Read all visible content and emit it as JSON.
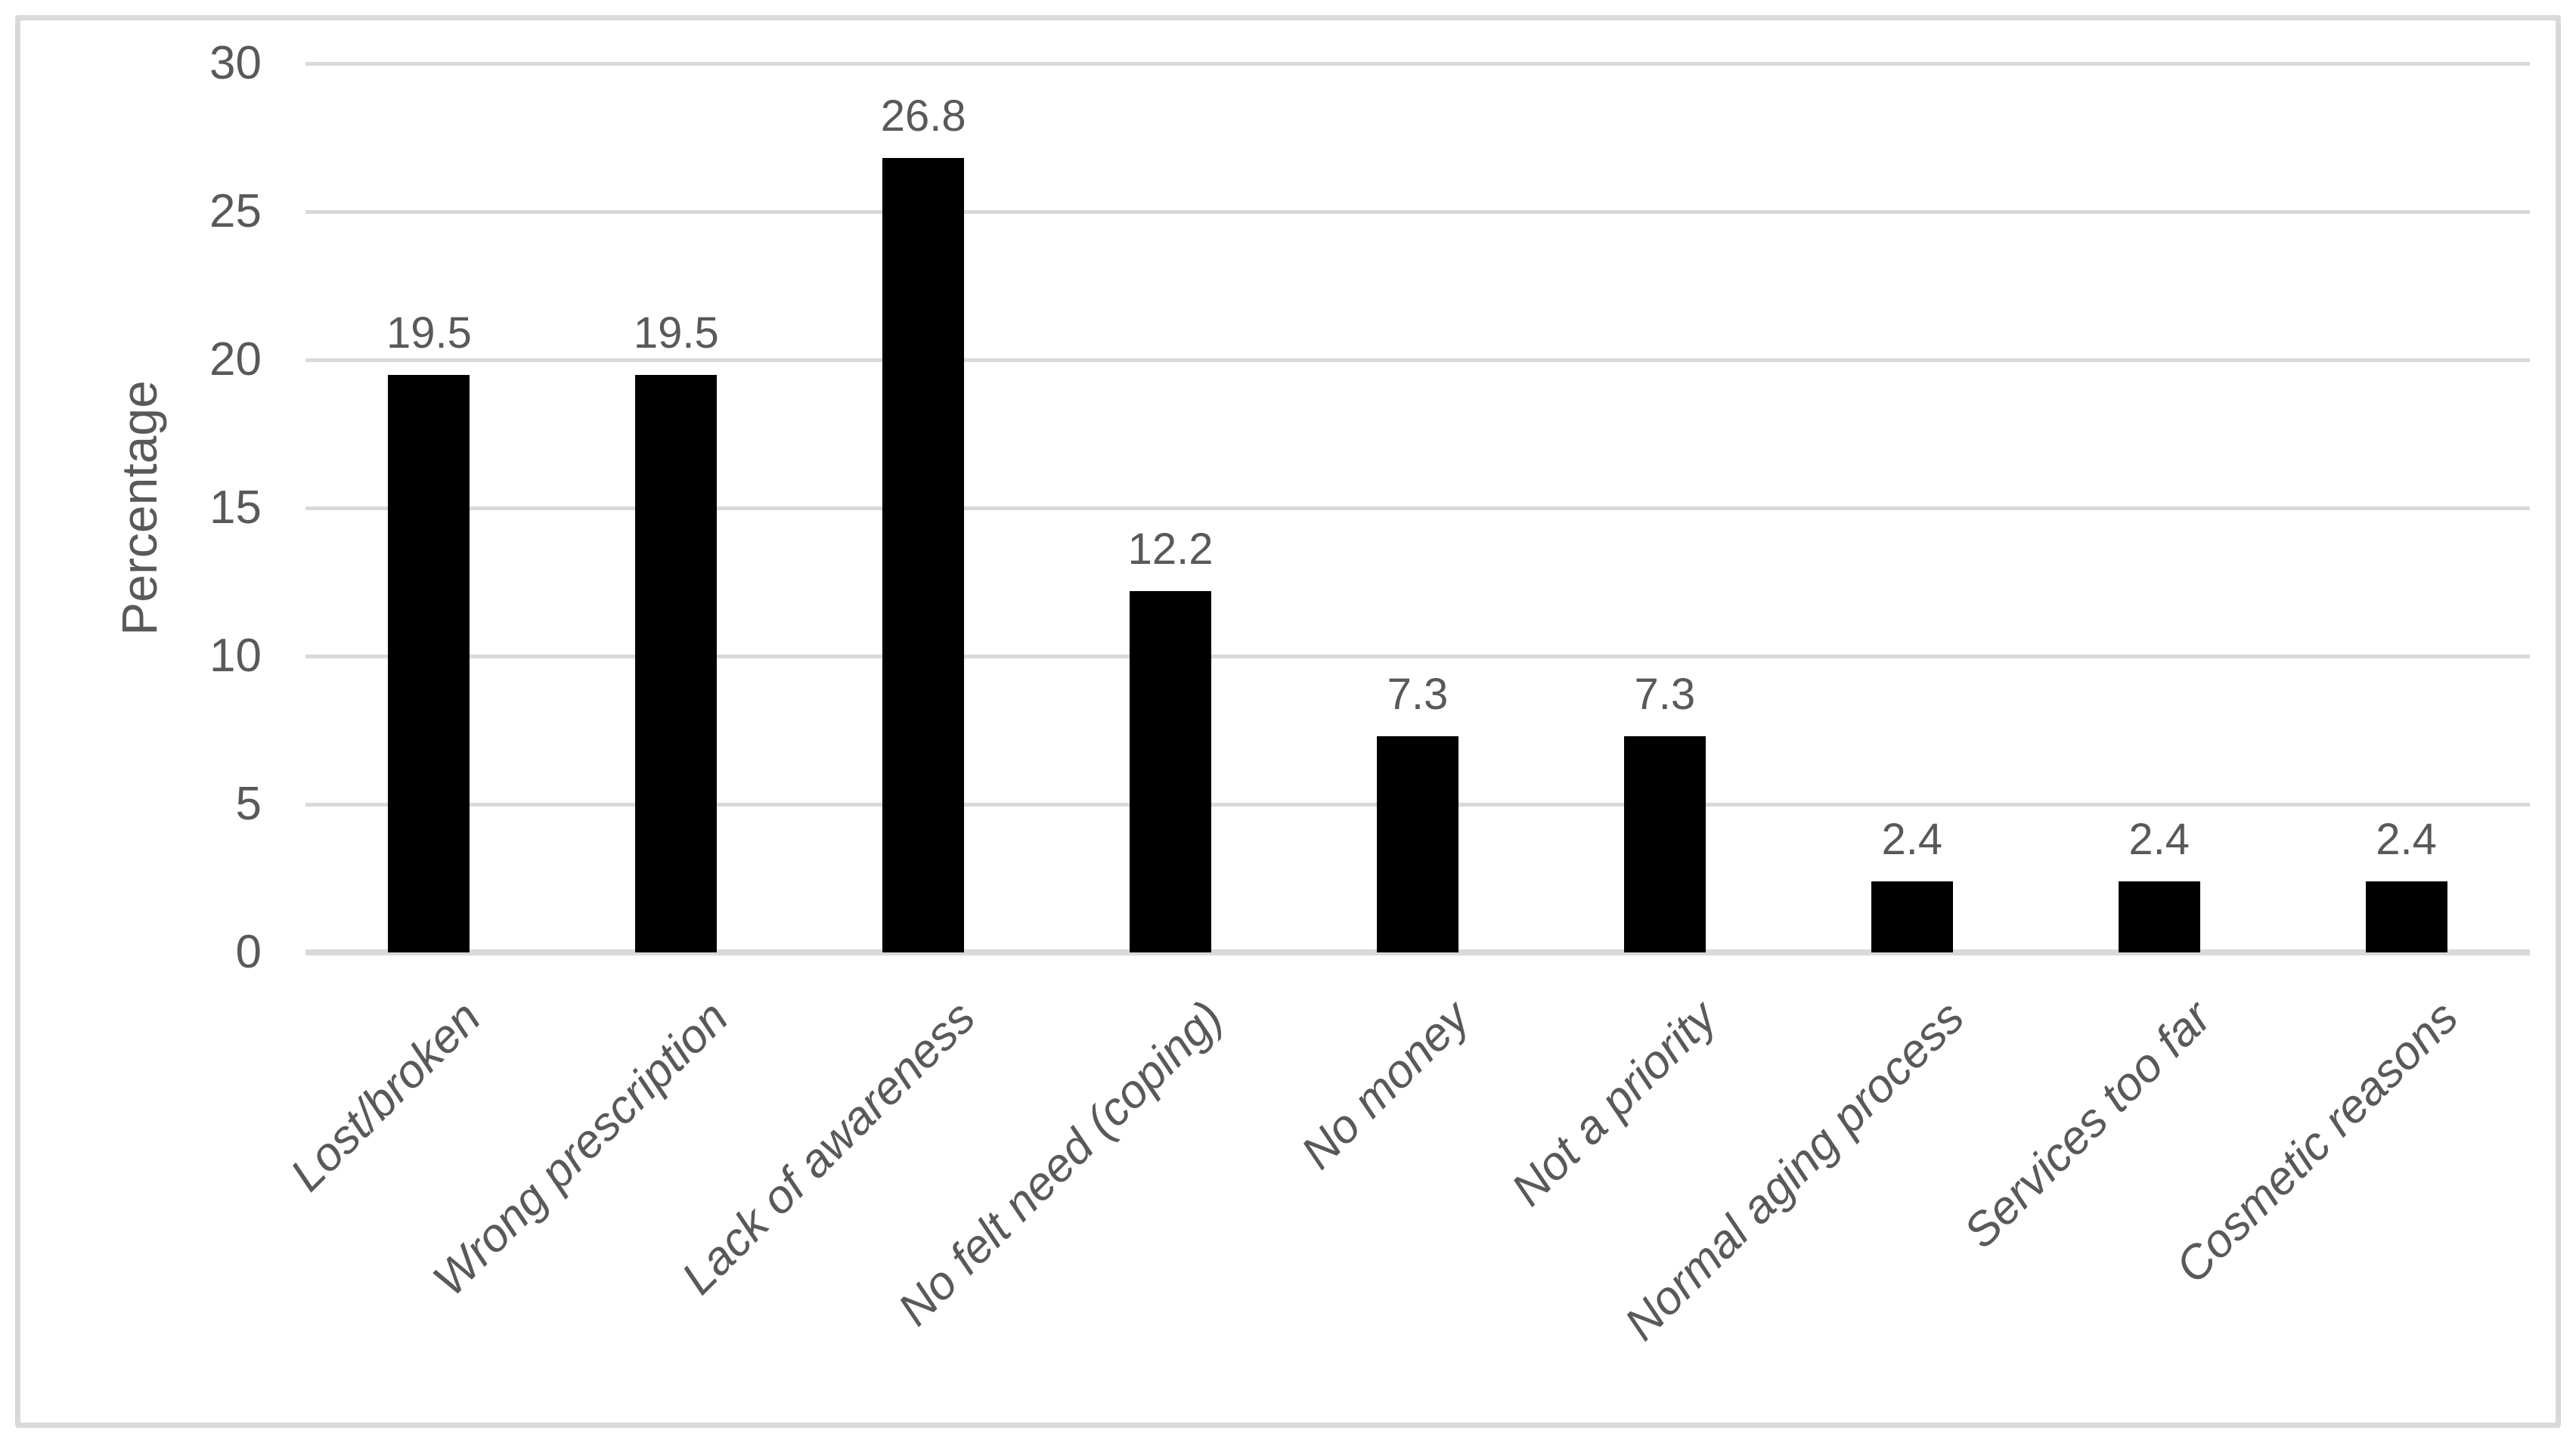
{
  "colors": {
    "background": "#ffffff",
    "bar": "#000000",
    "grid": "#d9d9d9",
    "border": "#d9d9d9",
    "text": "#595959"
  },
  "chart_data": {
    "type": "bar",
    "title": "",
    "xlabel": "",
    "ylabel": "Percentage",
    "ylim": [
      0,
      30
    ],
    "yticks": [
      0,
      5,
      10,
      15,
      20,
      25,
      30
    ],
    "grid": "horizontal-only",
    "legend": "none",
    "bar_style": "solid black, single series",
    "categories": [
      "Lost/broken",
      "Wrong prescription",
      "Lack of awareness",
      "No felt need (coping)",
      "No money",
      "Not a priority",
      "Normal aging process",
      "Services too far",
      "Cosmetic reasons"
    ],
    "values": [
      19.5,
      19.5,
      26.8,
      12.2,
      7.3,
      7.3,
      2.4,
      2.4,
      2.4
    ],
    "data_labels": [
      "19.5",
      "19.5",
      "26.8",
      "12.2",
      "7.3",
      "7.3",
      "2.4",
      "2.4",
      "2.4"
    ]
  }
}
